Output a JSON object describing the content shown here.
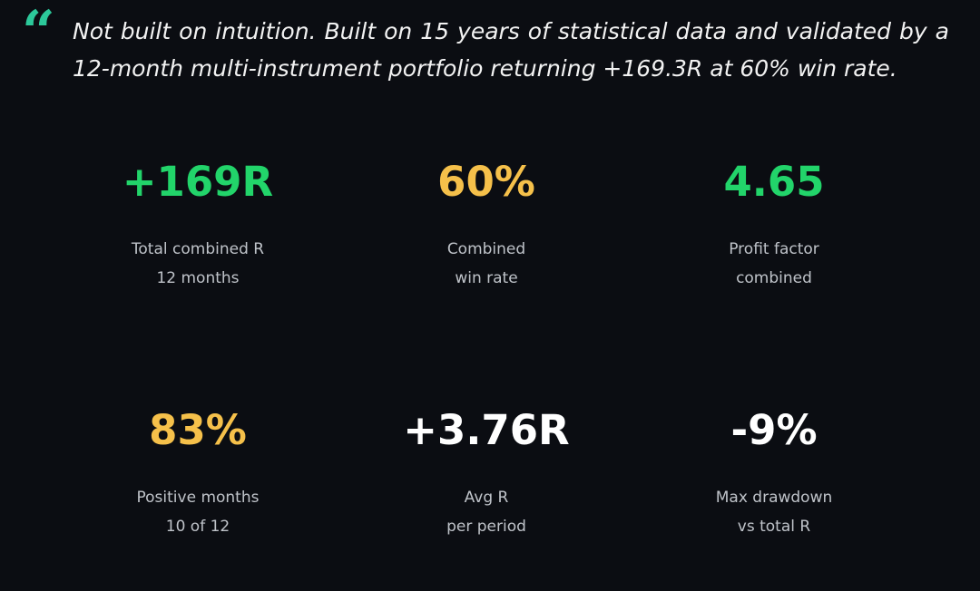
{
  "quote": "Not built on intuition. Built on 15 years of statistical data and validated by a 12-month multi-instrument portfolio returning +169.3R at 60% win rate.",
  "stats": [
    {
      "value": "+169R",
      "color": "#22d46a",
      "label1": "Total combined R",
      "label2": "12 months"
    },
    {
      "value": "60%",
      "color": "#f5c04a",
      "label1": "Combined",
      "label2": "win rate"
    },
    {
      "value": "4.65",
      "color": "#22d46a",
      "label1": "Profit factor",
      "label2": "combined"
    },
    {
      "value": "83%",
      "color": "#f5c04a",
      "label1": "Positive months",
      "label2": "10 of 12"
    },
    {
      "value": "+3.76R",
      "color": "#ffffff",
      "label1": "Avg R",
      "label2": "per period"
    },
    {
      "value": "-9%",
      "color": "#ffffff",
      "label1": "Max drawdown",
      "label2": "vs total R"
    }
  ]
}
